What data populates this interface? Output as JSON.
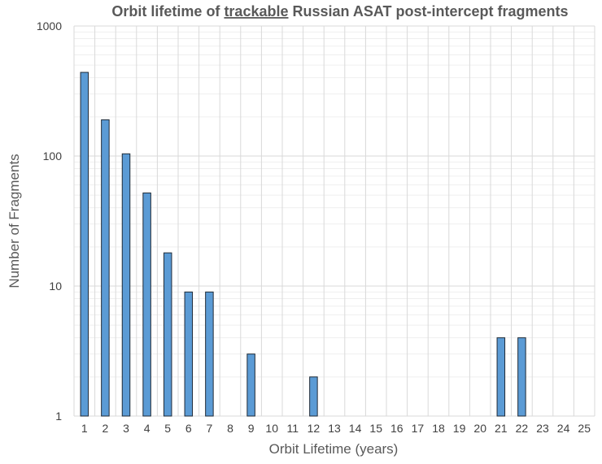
{
  "chart_data": {
    "type": "bar",
    "title": {
      "before": "Orbit lifetime of ",
      "underlined": "trackable",
      "after": " Russian ASAT post-intercept fragments"
    },
    "xlabel": "Orbit Lifetime (years)",
    "ylabel": "Number of Fragments",
    "y_scale": "log",
    "ylim": [
      1,
      1000
    ],
    "y_ticks": [
      {
        "value": 1,
        "label": "1"
      },
      {
        "value": 10,
        "label": "10"
      },
      {
        "value": 100,
        "label": "100"
      },
      {
        "value": 1000,
        "label": "1000"
      }
    ],
    "categories": [
      "1",
      "2",
      "3",
      "4",
      "5",
      "6",
      "7",
      "8",
      "9",
      "10",
      "11",
      "12",
      "13",
      "14",
      "15",
      "16",
      "17",
      "18",
      "19",
      "20",
      "21",
      "22",
      "23",
      "24",
      "25"
    ],
    "values": [
      440,
      190,
      104,
      52,
      18,
      9,
      9,
      null,
      3,
      null,
      null,
      2,
      null,
      null,
      null,
      null,
      null,
      null,
      null,
      null,
      4,
      4,
      null,
      null,
      null
    ],
    "grid": true,
    "legend": "none",
    "colors": {
      "bar_fill": "#5B9BD5",
      "bar_stroke": "#1F2A36",
      "grid": "#D9D9D9",
      "minor_grid": "#EFEFEF",
      "text": "#595959"
    }
  }
}
